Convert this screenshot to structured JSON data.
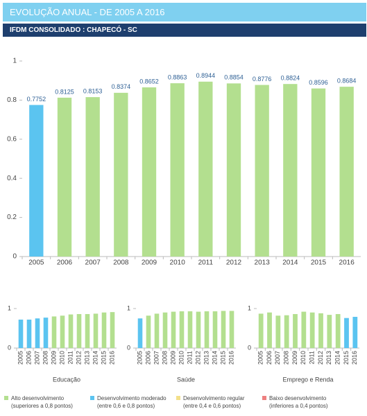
{
  "header": {
    "title": "EVOLUÇÃO ANUAL - DE 2005 A 2016",
    "subtitle": "IFDM CONSOLIDADO : CHAPECÓ - SC"
  },
  "chart_data": [
    {
      "type": "bar",
      "categories": [
        "2005",
        "2006",
        "2007",
        "2008",
        "2009",
        "2010",
        "2011",
        "2012",
        "2013",
        "2014",
        "2015",
        "2016"
      ],
      "values": [
        0.7752,
        0.8125,
        0.8153,
        0.8374,
        0.8652,
        0.8863,
        0.8944,
        0.8854,
        0.8776,
        0.8824,
        0.8596,
        0.8684
      ],
      "colors": [
        "#5bc4f0",
        "#b3df8f",
        "#b3df8f",
        "#b3df8f",
        "#b3df8f",
        "#b3df8f",
        "#b3df8f",
        "#b3df8f",
        "#b3df8f",
        "#b3df8f",
        "#b3df8f",
        "#b3df8f"
      ],
      "ylim": [
        0,
        1
      ],
      "yticks": [
        0,
        0.2,
        0.4,
        0.6,
        0.8,
        1
      ],
      "show_values": true
    },
    {
      "type": "bar",
      "xlabel": "Educação",
      "categories": [
        "2005",
        "2006",
        "2007",
        "2008",
        "2009",
        "2010",
        "2011",
        "2012",
        "2013",
        "2014",
        "2015",
        "2016"
      ],
      "values": [
        0.72,
        0.72,
        0.75,
        0.77,
        0.8,
        0.82,
        0.85,
        0.86,
        0.86,
        0.87,
        0.9,
        0.91
      ],
      "colors": [
        "#5bc4f0",
        "#5bc4f0",
        "#5bc4f0",
        "#5bc4f0",
        "#b3df8f",
        "#b3df8f",
        "#b3df8f",
        "#b3df8f",
        "#b3df8f",
        "#b3df8f",
        "#b3df8f",
        "#b3df8f"
      ],
      "ylim": [
        0,
        1
      ],
      "yticks": [
        0,
        1
      ]
    },
    {
      "type": "bar",
      "xlabel": "Saúde",
      "categories": [
        "2005",
        "2006",
        "2007",
        "2008",
        "2009",
        "2010",
        "2011",
        "2012",
        "2013",
        "2014",
        "2015",
        "2016"
      ],
      "values": [
        0.75,
        0.82,
        0.87,
        0.9,
        0.92,
        0.93,
        0.93,
        0.92,
        0.93,
        0.93,
        0.94,
        0.94
      ],
      "colors": [
        "#5bc4f0",
        "#b3df8f",
        "#b3df8f",
        "#b3df8f",
        "#b3df8f",
        "#b3df8f",
        "#b3df8f",
        "#b3df8f",
        "#b3df8f",
        "#b3df8f",
        "#b3df8f",
        "#b3df8f"
      ],
      "ylim": [
        0,
        1
      ],
      "yticks": [
        0,
        1
      ]
    },
    {
      "type": "bar",
      "xlabel": "Emprego e Renda",
      "categories": [
        "2005",
        "2006",
        "2007",
        "2008",
        "2009",
        "2010",
        "2011",
        "2012",
        "2013",
        "2014",
        "2015",
        "2016"
      ],
      "values": [
        0.87,
        0.9,
        0.82,
        0.83,
        0.86,
        0.92,
        0.9,
        0.88,
        0.84,
        0.86,
        0.76,
        0.79
      ],
      "colors": [
        "#b3df8f",
        "#b3df8f",
        "#b3df8f",
        "#b3df8f",
        "#b3df8f",
        "#b3df8f",
        "#b3df8f",
        "#b3df8f",
        "#b3df8f",
        "#b3df8f",
        "#5bc4f0",
        "#5bc4f0"
      ],
      "ylim": [
        0,
        1
      ],
      "yticks": [
        0,
        1
      ]
    }
  ],
  "legend": [
    {
      "label": "Alto desenvolvimento",
      "note": "(superiores a 0,8 pontos)",
      "color": "#b3df8f"
    },
    {
      "label": "Desenvolvimento moderado",
      "note": "(entre 0,6 e 0,8 pontos)",
      "color": "#5bc4f0"
    },
    {
      "label": "Desenvolvimento regular",
      "note": "(entre 0,4 e 0,6 pontos)",
      "color": "#f3e08a"
    },
    {
      "label": "Baixo desenvolvimento",
      "note": "(inferiores a 0,4 pontos)",
      "color": "#ee7f7f"
    }
  ]
}
